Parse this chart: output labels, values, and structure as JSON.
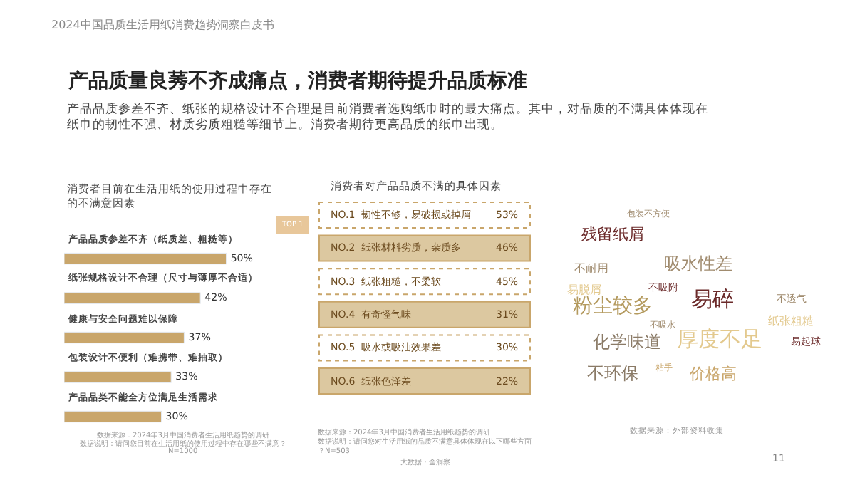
{
  "chart_data": [
    {
      "type": "other",
      "title": "产品质量良莠不齐成痛点，消费者期待提升品质标准",
      "subtitle": "产品品质参差不齐、纸张的规格设计不合理是目前消费者选购纸巾时的最大痛点。其中，对品质的不满具体体现在纸巾的韧性不强、材质劣质粗糙等细节上。消费者期待更高品质的纸巾出现。",
      "annotations": [
        "2024中国品质生活用纸消费趋势洞察白皮书",
        "11"
      ]
    },
    {
      "type": "bar",
      "orientation": "horizontal",
      "title": "消费者目前在生活用纸的使用过程中存在的不满意因素",
      "categories": [
        "产品品质参差不齐（纸质差、粗糙等）",
        "纸张规格设计不合理（尺寸与薄厚不合适）",
        "健康与安全问题难以保障",
        "包装设计不便利（难携带、难抽取）",
        "产品品类不能全方位满足生活需求"
      ],
      "values": [
        50,
        42,
        37,
        33,
        30
      ],
      "value_labels": [
        "50%",
        "42%",
        "37%",
        "33%",
        "30%"
      ],
      "color": "#c9a66b",
      "tick_labels": false,
      "annotations": [
        "TOP 1",
        "数据来源：2024年3月中国消费者生活用纸趋势的调研",
        "数据说明：请问您目前在生活用纸的使用过程中存在哪些不满意？",
        "N=1000"
      ]
    },
    {
      "type": "other",
      "title": "消费者对产品品质不满的具体因素",
      "categories": [
        "NO.1  韧性不够，易破损或掉屑",
        "NO.2  纸张材料劣质，杂质多",
        "NO.3  纸张粗糙，不柔软",
        "NO.4  有奇怪气味",
        "NO.5  吸水或吸油效果差",
        "NO.6  纸张色泽差"
      ],
      "value_labels": [
        "53%",
        "46%",
        "45%",
        "31%",
        "30%",
        "22%"
      ],
      "colors": [
        "#ffffff",
        "#dcc8a0",
        "#ffffff",
        "#dcc8a0",
        "#ffffff",
        "#dcc8a0"
      ],
      "annotations": [
        "数据来源：2024年3月中国消费者生活用纸趋势的调研",
        "数据说明：请问您对生活用纸的品质不满意具体体现在以下哪些方面？N=503",
        "大数据 · 全洞察"
      ]
    },
    {
      "type": "other",
      "categories": [
        "残留纸屑",
        "吸水性差",
        "易碎",
        "粉尘较多",
        "化学味道",
        "厚度不足",
        "不环保",
        "价格高",
        "不耐用",
        "易脱屑",
        "不吸附",
        "不透气",
        "纸张粗糙",
        "易起球",
        "包装不方便",
        "粘手",
        "不吸水"
      ],
      "colors": [
        "#6b2a2a",
        "#a08b6e",
        "#6b2a2a",
        "#b49a5e",
        "#8a7a66",
        "#e3c98e",
        "#8a7a66",
        "#c9a66b",
        "#a08b6e",
        "#e3c98e",
        "#6b2a2a",
        "#a08b6e",
        "#e3c98e",
        "#6b2a2a",
        "#a08b6e",
        "#c9a66b",
        "#a08b6e"
      ],
      "annotations": [
        "数据来源：外部资料收集"
      ]
    }
  ]
}
